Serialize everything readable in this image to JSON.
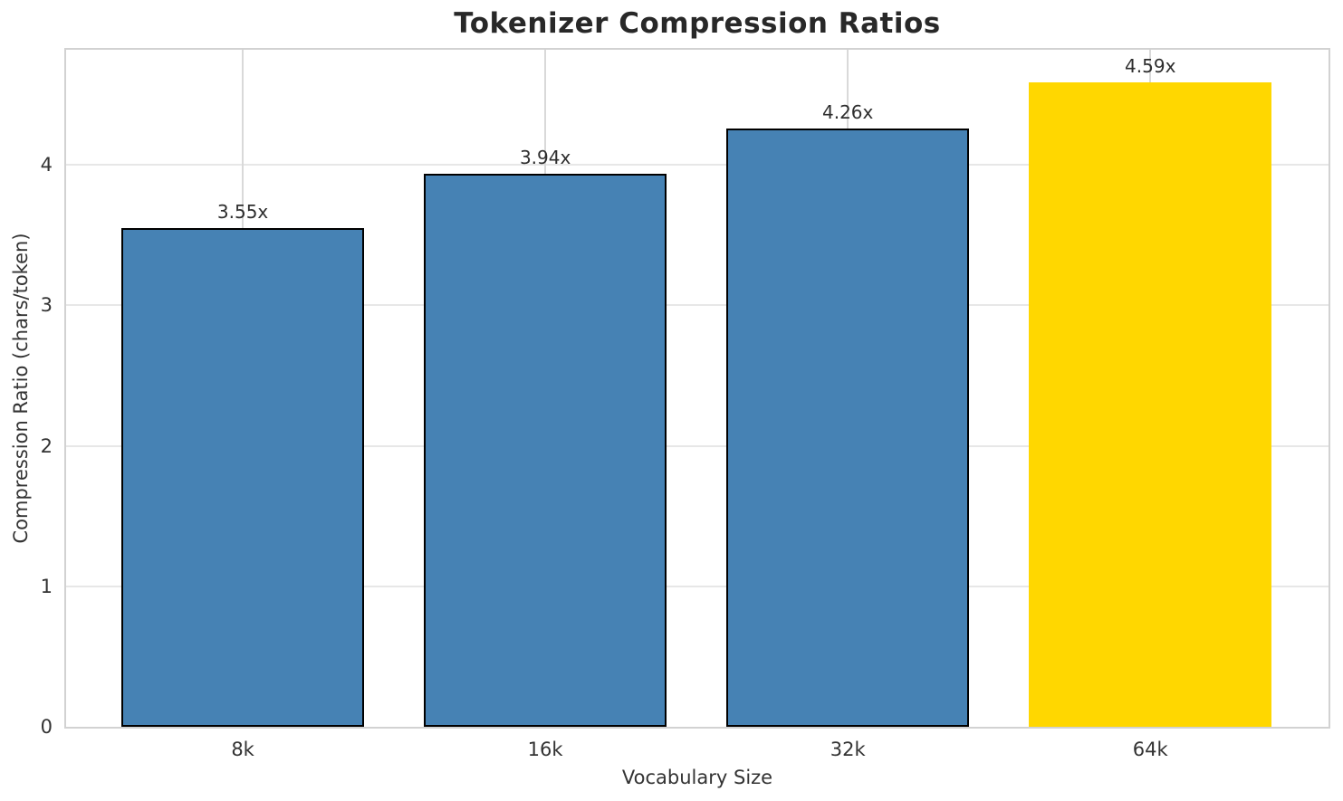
{
  "title": "Tokenizer Compression Ratios",
  "chart_data": {
    "type": "bar",
    "title": "Tokenizer Compression Ratios",
    "xlabel": "Vocabulary Size",
    "ylabel": "Compression Ratio (chars/token)",
    "categories": [
      "8k",
      "16k",
      "32k",
      "64k"
    ],
    "values": [
      3.55,
      3.94,
      4.26,
      4.59
    ],
    "value_labels": [
      "3.55x",
      "3.94x",
      "4.26x",
      "4.59x"
    ],
    "bar_colors": [
      "#4682B4",
      "#4682B4",
      "#4682B4",
      "#FFD700"
    ],
    "bar_edge_colors": [
      "#000000",
      "#000000",
      "#000000",
      "#FFD700"
    ],
    "highlight_index": 3,
    "ylim": [
      0,
      4.82
    ],
    "yticks": [
      0,
      1,
      2,
      3,
      4
    ],
    "ytick_labels": [
      "0",
      "1",
      "2",
      "3",
      "4"
    ],
    "grid": "both",
    "legend": "none"
  },
  "colors": {
    "background": "#ffffff",
    "spine": "#d2d2d2",
    "grid_horizontal": "#e7e7e7",
    "grid_vertical": "#d9d9d9",
    "bar_blue": "#4682B4",
    "bar_gold": "#FFD700",
    "bar_edge": "#000000",
    "text_dark": "#282828",
    "text_axis": "#333333"
  }
}
